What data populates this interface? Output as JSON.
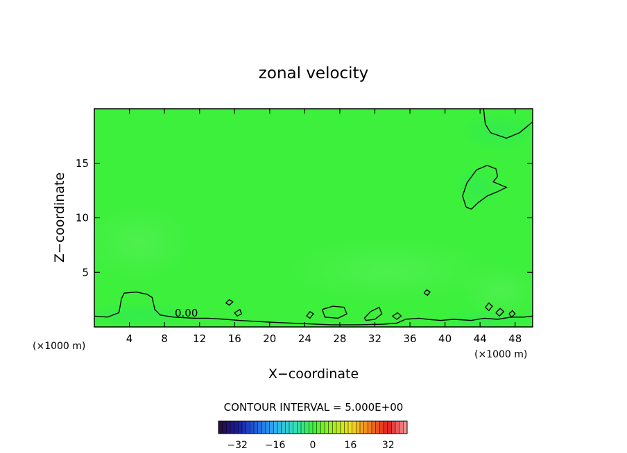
{
  "chart_data": {
    "type": "heatmap",
    "title": "zonal velocity",
    "xlabel": "X−coordinate",
    "ylabel": "Z−coordinate",
    "x_unit_left": "(×1000 m)",
    "x_unit_right": "(×1000 m)",
    "xlim": [
      0,
      50
    ],
    "ylim": [
      0,
      20
    ],
    "xticks": [
      4,
      8,
      12,
      16,
      20,
      24,
      28,
      32,
      36,
      40,
      44,
      48
    ],
    "xtick_labels": [
      "4",
      "8",
      "12",
      "16",
      "20",
      "24",
      "28",
      "32",
      "36",
      "40",
      "44",
      "48"
    ],
    "yticks": [
      5,
      10,
      15
    ],
    "ytick_labels": [
      "5",
      "10",
      "15"
    ],
    "contour_interval_text": "CONTOUR INTERVAL = 5.000E+00",
    "contour_label": "0.00",
    "colorbar": {
      "range": [
        -40,
        40
      ],
      "ticks": [
        -32,
        -16,
        0,
        16,
        32
      ],
      "tick_labels": [
        "−32",
        "−16",
        "0",
        "16",
        "32"
      ],
      "colormap": [
        "#2a0a3a",
        "#1a1a9e",
        "#1f5fe0",
        "#2fb0f0",
        "#30e0c0",
        "#3ef03a",
        "#a0f020",
        "#f0e020",
        "#f08020",
        "#e02020",
        "#f0a0a0"
      ]
    },
    "field_color": "#3cf03c",
    "zero_contours": [
      {
        "name": "upper-right-region",
        "points": [
          [
            44.4,
            20
          ],
          [
            44.6,
            18.6
          ],
          [
            45.2,
            17.8
          ],
          [
            47.0,
            17.3
          ],
          [
            48.5,
            17.8
          ],
          [
            50,
            18.8
          ]
        ]
      },
      {
        "name": "upper-right-lobe",
        "points": [
          [
            42.4,
            11.0
          ],
          [
            42.0,
            12.0
          ],
          [
            42.5,
            13.2
          ],
          [
            43.6,
            14.4
          ],
          [
            44.8,
            14.8
          ],
          [
            45.8,
            14.5
          ],
          [
            46.0,
            13.8
          ],
          [
            45.5,
            13.3
          ],
          [
            47.0,
            12.8
          ],
          [
            46.0,
            12.4
          ],
          [
            44.8,
            12.0
          ],
          [
            43.8,
            11.4
          ],
          [
            43.0,
            10.8
          ],
          [
            42.4,
            11.0
          ]
        ]
      },
      {
        "name": "low-level-boundary",
        "points": [
          [
            0,
            1.0
          ],
          [
            1.5,
            0.9
          ],
          [
            2.8,
            1.3
          ],
          [
            3.1,
            2.6
          ],
          [
            3.4,
            3.1
          ],
          [
            4.8,
            3.2
          ],
          [
            6.0,
            3.0
          ],
          [
            6.6,
            2.7
          ],
          [
            6.9,
            1.6
          ],
          [
            7.5,
            1.1
          ],
          [
            9.0,
            0.9
          ],
          [
            11.5,
            0.8
          ],
          [
            13.0,
            0.8
          ],
          [
            15.0,
            0.7
          ],
          [
            16.5,
            0.6
          ],
          [
            18.5,
            0.5
          ],
          [
            21.0,
            0.4
          ],
          [
            24.0,
            0.3
          ],
          [
            27.0,
            0.2
          ],
          [
            30.0,
            0.2
          ],
          [
            33.0,
            0.25
          ],
          [
            34.5,
            0.35
          ],
          [
            35.5,
            0.7
          ],
          [
            37.0,
            0.8
          ],
          [
            38.0,
            0.7
          ],
          [
            39.5,
            0.6
          ],
          [
            41.0,
            0.7
          ],
          [
            43.0,
            0.6
          ],
          [
            44.5,
            0.8
          ],
          [
            46.0,
            0.7
          ],
          [
            47.5,
            0.9
          ],
          [
            49.0,
            0.9
          ],
          [
            50,
            1.0
          ]
        ]
      },
      {
        "name": "cell-1",
        "points": [
          [
            15.0,
            2.2
          ],
          [
            15.4,
            2.5
          ],
          [
            15.8,
            2.3
          ],
          [
            15.4,
            2.0
          ],
          [
            15.0,
            2.2
          ]
        ]
      },
      {
        "name": "cell-2",
        "points": [
          [
            16.0,
            1.3
          ],
          [
            16.6,
            1.6
          ],
          [
            16.8,
            1.2
          ],
          [
            16.3,
            1.0
          ],
          [
            16.0,
            1.3
          ]
        ]
      },
      {
        "name": "cell-3",
        "points": [
          [
            24.2,
            1.0
          ],
          [
            24.6,
            1.4
          ],
          [
            25.0,
            1.2
          ],
          [
            24.6,
            0.8
          ],
          [
            24.2,
            1.0
          ]
        ]
      },
      {
        "name": "cell-4",
        "points": [
          [
            26.0,
            1.6
          ],
          [
            27.2,
            1.9
          ],
          [
            28.5,
            1.8
          ],
          [
            28.8,
            1.2
          ],
          [
            27.8,
            0.8
          ],
          [
            26.3,
            0.9
          ],
          [
            26.0,
            1.6
          ]
        ]
      },
      {
        "name": "cell-5",
        "points": [
          [
            30.8,
            0.8
          ],
          [
            31.5,
            1.4
          ],
          [
            32.5,
            1.8
          ],
          [
            32.8,
            1.2
          ],
          [
            32.0,
            0.7
          ],
          [
            31.0,
            0.6
          ],
          [
            30.8,
            0.8
          ]
        ]
      },
      {
        "name": "cell-6",
        "points": [
          [
            34.0,
            1.0
          ],
          [
            34.6,
            1.3
          ],
          [
            35.0,
            1.0
          ],
          [
            34.5,
            0.7
          ],
          [
            34.0,
            1.0
          ]
        ]
      },
      {
        "name": "cell-7",
        "points": [
          [
            37.6,
            3.1
          ],
          [
            37.9,
            3.4
          ],
          [
            38.3,
            3.2
          ],
          [
            38.0,
            2.9
          ],
          [
            37.6,
            3.1
          ]
        ]
      },
      {
        "name": "cell-8",
        "points": [
          [
            44.6,
            1.8
          ],
          [
            45.0,
            2.2
          ],
          [
            45.4,
            1.9
          ],
          [
            45.0,
            1.5
          ],
          [
            44.6,
            1.8
          ]
        ]
      },
      {
        "name": "cell-9",
        "points": [
          [
            45.8,
            1.3
          ],
          [
            46.3,
            1.7
          ],
          [
            46.7,
            1.4
          ],
          [
            46.2,
            1.0
          ],
          [
            45.8,
            1.3
          ]
        ]
      },
      {
        "name": "cell-10",
        "points": [
          [
            47.3,
            1.2
          ],
          [
            47.7,
            1.5
          ],
          [
            48.0,
            1.2
          ],
          [
            47.6,
            0.9
          ],
          [
            47.3,
            1.2
          ]
        ]
      }
    ],
    "grid": false,
    "legend": "colorbar-bottom"
  }
}
